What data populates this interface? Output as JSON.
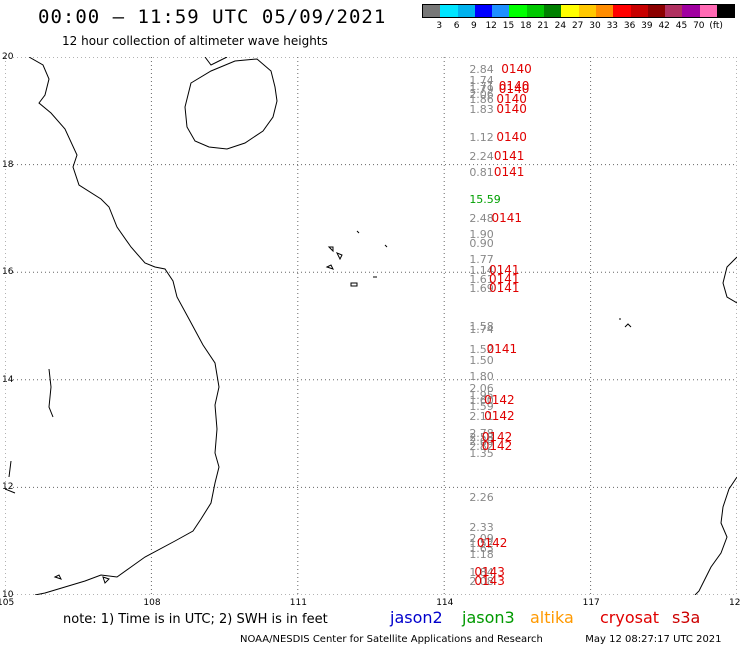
{
  "title": "00:00 – 11:59 UTC 05/09/2021",
  "subtitle": "12 hour collection of altimeter wave heights",
  "legend": {
    "colors": [
      "#777777",
      "#00e5ff",
      "#00b2ee",
      "#0000ff",
      "#1e90ff",
      "#00ff00",
      "#00c800",
      "#008000",
      "#ffff00",
      "#ffc800",
      "#ff8c00",
      "#ff0000",
      "#c80000",
      "#8b0000",
      "#b03060",
      "#a000a0",
      "#ff69b4",
      "#000000"
    ],
    "labels": [
      "3",
      "6",
      "9",
      "12",
      "15",
      "18",
      "21",
      "24",
      "27",
      "30",
      "33",
      "36",
      "39",
      "42",
      "45",
      "70",
      "(ft)"
    ]
  },
  "axes": {
    "x_ticks": [
      "105",
      "108",
      "111",
      "114",
      "117",
      "120"
    ],
    "y_ticks": [
      "20",
      "18",
      "16",
      "14",
      "12",
      "10"
    ],
    "xlim": [
      105,
      120
    ],
    "ylim": [
      10,
      20
    ]
  },
  "wave_heights": [
    {
      "text": "2.84",
      "lat": 19.75,
      "lon": 113.9
    },
    {
      "text": "1.74",
      "lat": 19.55,
      "lon": 113.9
    },
    {
      "text": "1.71",
      "lat": 19.45,
      "lon": 113.9
    },
    {
      "text": "1.79",
      "lat": 19.38,
      "lon": 113.9
    },
    {
      "text": "2.06",
      "lat": 19.3,
      "lon": 113.9
    },
    {
      "text": "1.86",
      "lat": 19.2,
      "lon": 113.9
    },
    {
      "text": "1.83",
      "lat": 19.02,
      "lon": 113.9
    },
    {
      "text": "1.12",
      "lat": 18.5,
      "lon": 113.9
    },
    {
      "text": "2.24",
      "lat": 18.15,
      "lon": 113.9
    },
    {
      "text": "0.81",
      "lat": 17.85,
      "lon": 113.9
    },
    {
      "text": "15.59",
      "lat": 17.35,
      "lon": 113.9,
      "color": "#00a000"
    },
    {
      "text": "2.48",
      "lat": 16.98,
      "lon": 113.9
    },
    {
      "text": "1.90",
      "lat": 16.7,
      "lon": 113.9
    },
    {
      "text": "0.90",
      "lat": 16.52,
      "lon": 113.9
    },
    {
      "text": "1.77",
      "lat": 16.22,
      "lon": 113.9
    },
    {
      "text": "1.14",
      "lat": 16.03,
      "lon": 113.9
    },
    {
      "text": "1.61",
      "lat": 15.85,
      "lon": 113.9
    },
    {
      "text": "1.69",
      "lat": 15.68,
      "lon": 113.9
    },
    {
      "text": "1.58",
      "lat": 14.98,
      "lon": 113.9
    },
    {
      "text": "1.74",
      "lat": 14.93,
      "lon": 113.9
    },
    {
      "text": "1.52",
      "lat": 14.55,
      "lon": 113.9
    },
    {
      "text": "1.50",
      "lat": 14.35,
      "lon": 113.9
    },
    {
      "text": "1.80",
      "lat": 14.05,
      "lon": 113.9
    },
    {
      "text": "2.06",
      "lat": 13.82,
      "lon": 113.9
    },
    {
      "text": "1.95",
      "lat": 13.7,
      "lon": 113.9
    },
    {
      "text": "1.60",
      "lat": 13.6,
      "lon": 113.9
    },
    {
      "text": "1.59",
      "lat": 13.5,
      "lon": 113.9
    },
    {
      "text": "2.11",
      "lat": 13.3,
      "lon": 113.9
    },
    {
      "text": "2.78",
      "lat": 13.0,
      "lon": 113.9
    },
    {
      "text": "2.58",
      "lat": 12.92,
      "lon": 113.9
    },
    {
      "text": "2.60",
      "lat": 12.84,
      "lon": 113.9
    },
    {
      "text": "2.82",
      "lat": 12.76,
      "lon": 113.9
    },
    {
      "text": "1.35",
      "lat": 12.63,
      "lon": 113.9
    },
    {
      "text": "2.26",
      "lat": 11.8,
      "lon": 113.9
    },
    {
      "text": "2.33",
      "lat": 11.25,
      "lon": 113.9
    },
    {
      "text": "2.09",
      "lat": 11.05,
      "lon": 113.9
    },
    {
      "text": "1.52",
      "lat": 10.95,
      "lon": 113.9
    },
    {
      "text": "1.65",
      "lat": 10.85,
      "lon": 113.9
    },
    {
      "text": "1.18",
      "lat": 10.75,
      "lon": 113.9
    },
    {
      "text": "1.84",
      "lat": 10.4,
      "lon": 113.9
    },
    {
      "text": "2.08",
      "lat": 10.25,
      "lon": 113.9
    }
  ],
  "passes": [
    {
      "text": "0140",
      "lat": 19.75,
      "lon": 114.8
    },
    {
      "text": "0140",
      "lat": 19.45,
      "lon": 114.75
    },
    {
      "text": "0140",
      "lat": 19.38,
      "lon": 114.75
    },
    {
      "text": "0140",
      "lat": 19.2,
      "lon": 114.7
    },
    {
      "text": "0140",
      "lat": 19.02,
      "lon": 114.7
    },
    {
      "text": "0140",
      "lat": 18.5,
      "lon": 114.7
    },
    {
      "text": "0141",
      "lat": 18.15,
      "lon": 114.65
    },
    {
      "text": "0141",
      "lat": 17.85,
      "lon": 114.65
    },
    {
      "text": "0141",
      "lat": 16.98,
      "lon": 114.6
    },
    {
      "text": "0141",
      "lat": 16.03,
      "lon": 114.55
    },
    {
      "text": "0141",
      "lat": 15.85,
      "lon": 114.55
    },
    {
      "text": "0141",
      "lat": 15.68,
      "lon": 114.55
    },
    {
      "text": "0141",
      "lat": 14.55,
      "lon": 114.5
    },
    {
      "text": "0142",
      "lat": 13.6,
      "lon": 114.45
    },
    {
      "text": "0142",
      "lat": 13.3,
      "lon": 114.45
    },
    {
      "text": "0142",
      "lat": 12.92,
      "lon": 114.4
    },
    {
      "text": "0142",
      "lat": 12.76,
      "lon": 114.4
    },
    {
      "text": "0142",
      "lat": 10.95,
      "lon": 114.3
    },
    {
      "text": "0143",
      "lat": 10.4,
      "lon": 114.25
    },
    {
      "text": "0143",
      "lat": 10.25,
      "lon": 114.25
    }
  ],
  "note": "note: 1) Time is in UTC; 2) SWH is in feet",
  "satellites": [
    {
      "name": "jason2",
      "color": "#0000cc"
    },
    {
      "name": "jason3",
      "color": "#009900"
    },
    {
      "name": "altika",
      "color": "#ff9900"
    },
    {
      "name": "cryosat",
      "color": "#e00000"
    },
    {
      "name": "s3a",
      "color": "#cc0000"
    }
  ],
  "credit_left": "NOAA/NESDIS Center for Satellite Applications and Research",
  "credit_right": "May 12 08:27:17 UTC 2021"
}
